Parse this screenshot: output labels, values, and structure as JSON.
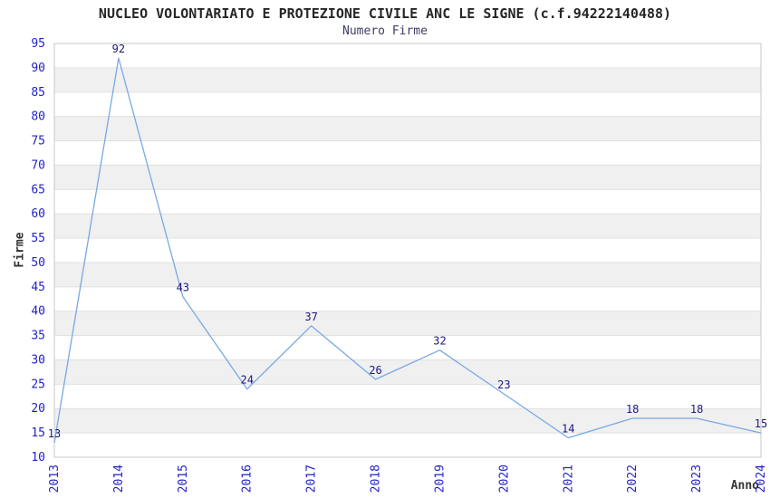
{
  "chart_data": {
    "type": "line",
    "title": "NUCLEO VOLONTARIATO E PROTEZIONE CIVILE ANC LE SIGNE (c.f.94222140488)",
    "subtitle": "Numero Firme",
    "xlabel": "Anno",
    "ylabel": "Firme",
    "categories": [
      "2013",
      "2014",
      "2015",
      "2016",
      "2017",
      "2018",
      "2019",
      "2020",
      "2021",
      "2022",
      "2023",
      "2024"
    ],
    "values": [
      13,
      92,
      43,
      24,
      37,
      26,
      32,
      23,
      14,
      18,
      18,
      15
    ],
    "ylim": [
      10,
      95
    ],
    "y_tick_step": 5,
    "grid": "horizontal-alternating-bands",
    "legend": "none",
    "data_labels": "above-points",
    "colors": {
      "line": "#79A8E3",
      "tick_label": "#2222CC",
      "data_label": "#191980",
      "band": "#F0F0F0",
      "gridline": "#E0E0E0",
      "border": "#D0D0D0",
      "title": "#262626",
      "subtitle": "#3C3C64",
      "axis_title": "#333333"
    }
  }
}
